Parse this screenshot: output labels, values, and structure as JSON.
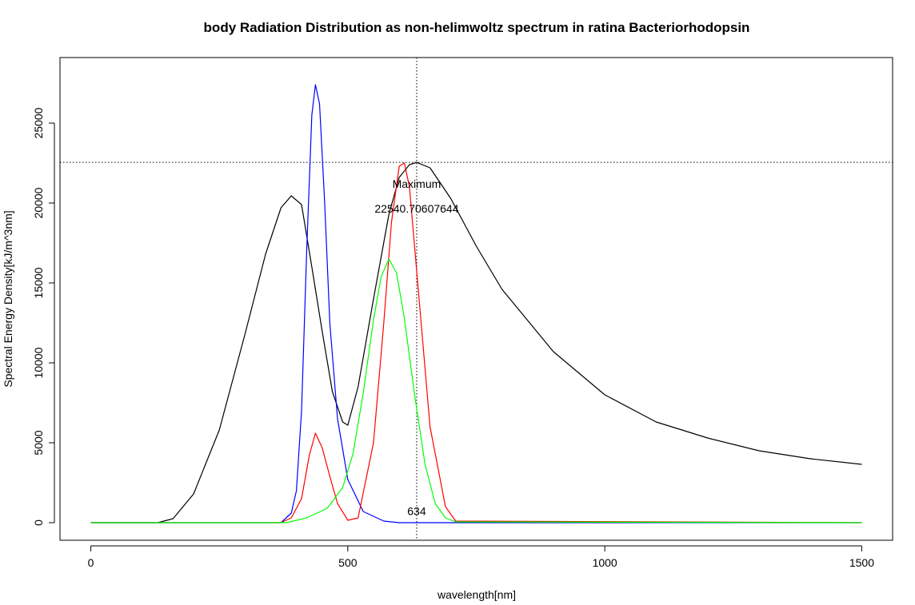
{
  "chart_data": {
    "type": "line",
    "title": "body Radiation Distribution as non-helimwoltz spectrum in ratina Bacteriorhodopsin",
    "xlabel": "wavelength[nm]",
    "ylabel": "Spectral Energy Density[kJ/m^3nm]",
    "xlim": [
      -60,
      1560
    ],
    "ylim": [
      -1100,
      29100
    ],
    "x_ticks": [
      0,
      500,
      1000,
      1500
    ],
    "x_tick_labels": [
      "0",
      "500",
      "1000",
      "1500"
    ],
    "y_ticks": [
      0,
      5000,
      10000,
      15000,
      20000,
      25000
    ],
    "y_tick_labels": [
      "0",
      "5000",
      "10000",
      "15000",
      "20000",
      "25000"
    ],
    "grid": false,
    "legend": "none",
    "series": [
      {
        "color": "#000000",
        "x": [
          0,
          130,
          160,
          200,
          250,
          300,
          340,
          370,
          390,
          410,
          430,
          450,
          470,
          490,
          500,
          520,
          550,
          580,
          600,
          620,
          634,
          660,
          700,
          750,
          800,
          900,
          1000,
          1100,
          1200,
          1300,
          1400,
          1500
        ],
        "y": [
          0,
          0,
          250,
          1800,
          5800,
          11800,
          16800,
          19700,
          20450,
          19900,
          16000,
          12000,
          8200,
          6300,
          6100,
          8500,
          14000,
          19300,
          21600,
          22400,
          22540,
          22200,
          20300,
          17300,
          14600,
          10700,
          8000,
          6300,
          5300,
          4500,
          4000,
          3650
        ]
      },
      {
        "color": "#0000ff",
        "x": [
          0,
          370,
          390,
          400,
          410,
          420,
          430,
          437,
          445,
          455,
          465,
          480,
          500,
          530,
          570,
          600,
          1500
        ],
        "y": [
          0,
          0,
          600,
          2000,
          7000,
          17000,
          25500,
          27400,
          26200,
          20000,
          12500,
          6500,
          2700,
          700,
          100,
          0,
          0
        ],
        "series_name": ""
      },
      {
        "color": "#ff0000",
        "x": [
          0,
          370,
          390,
          410,
          425,
          437,
          450,
          465,
          480,
          500,
          520,
          550,
          570,
          585,
          600,
          610,
          620,
          640,
          660,
          690,
          710,
          1500
        ],
        "y": [
          0,
          0,
          300,
          1500,
          4200,
          5600,
          4700,
          2900,
          1200,
          150,
          300,
          5000,
          12500,
          18800,
          22300,
          22500,
          21000,
          13500,
          6000,
          1000,
          100,
          0
        ]
      },
      {
        "color": "#00ff00",
        "x": [
          0,
          380,
          420,
          460,
          490,
          510,
          530,
          550,
          565,
          580,
          595,
          610,
          630,
          650,
          670,
          690,
          710,
          1500
        ],
        "y": [
          0,
          0,
          300,
          900,
          2200,
          4300,
          8100,
          12700,
          15400,
          16500,
          15600,
          12800,
          8000,
          3700,
          1200,
          300,
          50,
          0
        ]
      }
    ],
    "reference_lines": [
      {
        "orientation": "horizontal",
        "value": 22540.70607644,
        "style": "dotted"
      },
      {
        "orientation": "vertical",
        "value": 634,
        "style": "dotted"
      }
    ],
    "annotations": [
      {
        "text": "Maximum",
        "x": 634,
        "y": 21200
      },
      {
        "text": "22540.70607644",
        "x": 634,
        "y": 19650
      },
      {
        "text": "634",
        "x": 634,
        "y": 720
      }
    ]
  }
}
